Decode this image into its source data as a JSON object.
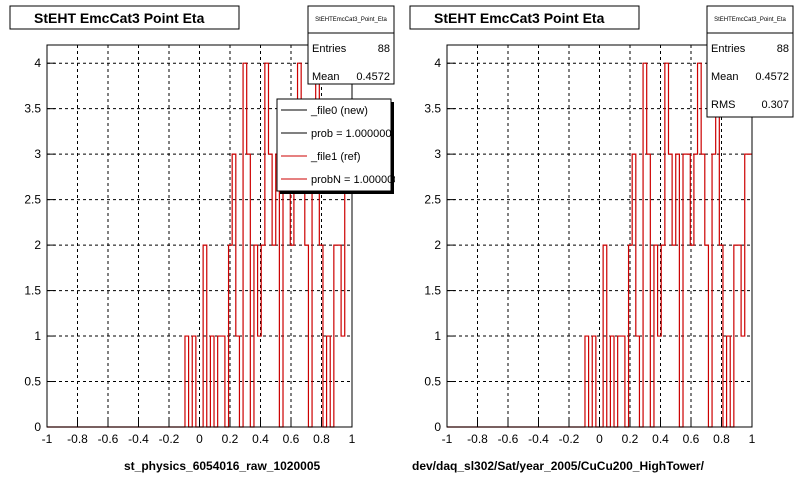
{
  "colors": {
    "histogram": "#cc0000",
    "frame": "#000000",
    "grid": "#000000",
    "background": "#ffffff"
  },
  "footer_text": "",
  "stats_fields": {
    "entries": "Entries",
    "mean": "Mean",
    "rms": "RMS"
  },
  "chart_data": [
    {
      "type": "step",
      "title": "StEHT EmcCat3 Point Eta",
      "xlabel": "st_physics_6054016_raw_1020005",
      "ylabel": "",
      "xlim": [
        -1,
        1
      ],
      "ylim": [
        0,
        4.2
      ],
      "grid": true,
      "x_ticks": [
        "-1",
        "-0.8",
        "-0.6",
        "-0.4",
        "-0.2",
        "0",
        "0.2",
        "0.4",
        "0.6",
        "0.8",
        "1"
      ],
      "y_ticks": [
        "0",
        "0.5",
        "1",
        "1.5",
        "2",
        "2.5",
        "3",
        "3.5",
        "4"
      ],
      "stats": {
        "name": "StEHTEmcCat3_Point_Eta",
        "entries": "88",
        "mean": "0.4572"
      },
      "legend": {
        "placement": "top-right",
        "entries": [
          {
            "label": "_file0 (new)",
            "color": "#000000"
          },
          {
            "label": "prob = 1.000000",
            "color": "#000000"
          },
          {
            "label": "_file1 (ref)",
            "color": "#cc0000"
          },
          {
            "label": "probN = 1.000000",
            "color": "#cc0000"
          }
        ]
      },
      "series": [
        {
          "name": "_file1 (ref)",
          "color": "#cc0000",
          "bin_edges": [
            -1,
            1
          ],
          "values": [
            0,
            0,
            0,
            0,
            0,
            0,
            0,
            0,
            0,
            0,
            0,
            0,
            0,
            0,
            0,
            0,
            0,
            0,
            0,
            0,
            0,
            0,
            0,
            0,
            0,
            0,
            0,
            0,
            0,
            0,
            0,
            0,
            0,
            0,
            0,
            0,
            0,
            0,
            1,
            0,
            1,
            0,
            0,
            2,
            0,
            1,
            0,
            1,
            1,
            0,
            2,
            3,
            1,
            0,
            4,
            3,
            0,
            2,
            1,
            2,
            4,
            3,
            2,
            3,
            0,
            3,
            3,
            2,
            3,
            4,
            3,
            2,
            0,
            3,
            4,
            2,
            0,
            1,
            0,
            2,
            2,
            1,
            3,
            3
          ]
        }
      ]
    },
    {
      "type": "step",
      "title": "StEHT EmcCat3 Point Eta",
      "xlabel": "dev/daq_sl302/Sat/year_2005/CuCu200_HighTower/",
      "ylabel": "",
      "xlim": [
        -1,
        1
      ],
      "ylim": [
        0,
        4.2
      ],
      "grid": true,
      "x_ticks": [
        "-1",
        "-0.8",
        "-0.6",
        "-0.4",
        "-0.2",
        "0",
        "0.2",
        "0.4",
        "0.6",
        "0.8",
        "1"
      ],
      "y_ticks": [
        "0",
        "0.5",
        "1",
        "1.5",
        "2",
        "2.5",
        "3",
        "3.5",
        "4"
      ],
      "stats": {
        "name": "StEHTEmcCat3_Point_Eta",
        "entries": "88",
        "mean": "0.4572",
        "rms": "0.307"
      },
      "series": [
        {
          "name": "_file1 (ref)",
          "color": "#cc0000",
          "bin_edges": [
            -1,
            1
          ],
          "values": [
            0,
            0,
            0,
            0,
            0,
            0,
            0,
            0,
            0,
            0,
            0,
            0,
            0,
            0,
            0,
            0,
            0,
            0,
            0,
            0,
            0,
            0,
            0,
            0,
            0,
            0,
            0,
            0,
            0,
            0,
            0,
            0,
            0,
            0,
            0,
            0,
            0,
            0,
            1,
            0,
            1,
            0,
            0,
            2,
            0,
            1,
            0,
            1,
            1,
            0,
            2,
            3,
            1,
            0,
            4,
            3,
            0,
            2,
            1,
            2,
            4,
            3,
            2,
            3,
            0,
            3,
            3,
            2,
            3,
            4,
            3,
            2,
            0,
            3,
            4,
            2,
            0,
            1,
            0,
            2,
            2,
            1,
            3,
            3
          ]
        }
      ]
    }
  ]
}
